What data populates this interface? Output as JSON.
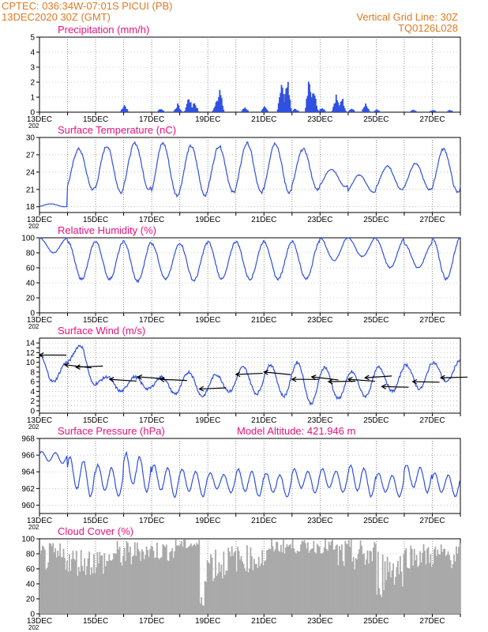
{
  "header": {
    "line1_left": "CPTEC:   036:34W-07:01S   PICUI (PB)",
    "line2_left": "13DEC2020 30Z (GMT)",
    "line1_right": "Vertical Grid Line: 30Z",
    "line2_right": "TQ0126L028"
  },
  "colors": {
    "series": "#3050e0",
    "header": "#e07a20",
    "title": "#e8127a",
    "cloud": "#a9a9a9",
    "arrow": "#000000"
  },
  "x_axis": {
    "labels": [
      "13DEC",
      "15DEC",
      "17DEC",
      "19DEC",
      "21DEC",
      "23DEC",
      "25DEC",
      "27DEC"
    ],
    "year_fragment": "202",
    "range_days": [
      13,
      28
    ]
  },
  "chart_data": [
    {
      "id": "precip",
      "type": "bar",
      "title": "Precipitation (mm/h)",
      "ylim": [
        0,
        5
      ],
      "yticks": [
        0,
        1,
        2,
        3,
        4,
        5
      ],
      "bursts": [
        {
          "day": 16.0,
          "peak": 0.6
        },
        {
          "day": 17.3,
          "peak": 0.3
        },
        {
          "day": 17.9,
          "peak": 0.6
        },
        {
          "day": 18.3,
          "peak": 1.2
        },
        {
          "day": 18.5,
          "peak": 0.8
        },
        {
          "day": 19.3,
          "peak": 1.0
        },
        {
          "day": 19.4,
          "peak": 1.7
        },
        {
          "day": 20.3,
          "peak": 0.4
        },
        {
          "day": 21.0,
          "peak": 0.4
        },
        {
          "day": 21.6,
          "peak": 2.4
        },
        {
          "day": 21.8,
          "peak": 2.6
        },
        {
          "day": 22.1,
          "peak": 0.3
        },
        {
          "day": 22.6,
          "peak": 2.8
        },
        {
          "day": 22.75,
          "peak": 2.0
        },
        {
          "day": 23.05,
          "peak": 0.4
        },
        {
          "day": 23.55,
          "peak": 1.3
        },
        {
          "day": 23.75,
          "peak": 1.2
        },
        {
          "day": 24.1,
          "peak": 0.3
        },
        {
          "day": 24.6,
          "peak": 0.6
        },
        {
          "day": 25.0,
          "peak": 0.2
        },
        {
          "day": 26.3,
          "peak": 0.2
        },
        {
          "day": 27.0,
          "peak": 0.2
        },
        {
          "day": 27.6,
          "peak": 0.2
        }
      ]
    },
    {
      "id": "temp",
      "type": "line",
      "title": "Surface Temperature (nC)",
      "ylim": [
        17,
        30
      ],
      "yticks": [
        18,
        21,
        24,
        27,
        30
      ],
      "daily_max": [
        18.5,
        28.0,
        28.5,
        29.0,
        29.0,
        28.5,
        28.5,
        29.0,
        29.0,
        28.0,
        24.5,
        23.5,
        25.0,
        25.5,
        28.0,
        28.5,
        29.0,
        29.5
      ],
      "daily_min": [
        18.0,
        21.0,
        20.5,
        21.0,
        20.0,
        20.0,
        20.5,
        20.5,
        20.5,
        21.0,
        21.5,
        20.5,
        21.0,
        21.0,
        20.5,
        21.0,
        20.5,
        19.5
      ]
    },
    {
      "id": "rh",
      "type": "line",
      "title": "Relative Humidity (%)",
      "ylim": [
        0,
        100
      ],
      "yticks": [
        0,
        20,
        40,
        60,
        80,
        100
      ],
      "daily_max": [
        100,
        95,
        95,
        95,
        92,
        93,
        95,
        95,
        95,
        95,
        100,
        100,
        98,
        92,
        100,
        95,
        95,
        95
      ],
      "daily_min": [
        80,
        45,
        45,
        42,
        45,
        43,
        45,
        45,
        45,
        45,
        70,
        75,
        60,
        60,
        45,
        40,
        40,
        42
      ]
    },
    {
      "id": "wind",
      "type": "line",
      "title": "Surface Wind (m/s)",
      "ylim": [
        -0.5,
        15
      ],
      "yticks": [
        0,
        1,
        2,
        3,
        4,
        5,
        6,
        7,
        8,
        9,
        10,
        11,
        12,
        13,
        14
      ],
      "ytick_labels": [
        0,
        2,
        4,
        6,
        8,
        10,
        12,
        14
      ],
      "speed": [
        11.5,
        6.0,
        10.0,
        13.5,
        5.5,
        7.0,
        4.0,
        7.0,
        4.5,
        7.0,
        3.5,
        8.0,
        3.0,
        7.5,
        4.0,
        9.0,
        3.5,
        9.5,
        3.0,
        10.0,
        1.5,
        9.0,
        2.5,
        8.0,
        3.0,
        9.0,
        4.0,
        9.5,
        4.5,
        10.0,
        6.0,
        10.5
      ],
      "barbs": [
        {
          "day": 13.0,
          "y": 11.5
        },
        {
          "day": 13.9,
          "y": 9.5
        },
        {
          "day": 14.3,
          "y": 9.0
        },
        {
          "day": 15.5,
          "y": 6.5
        },
        {
          "day": 16.5,
          "y": 7.0
        },
        {
          "day": 17.3,
          "y": 6.5
        },
        {
          "day": 18.7,
          "y": 4.5
        },
        {
          "day": 20.0,
          "y": 7.5
        },
        {
          "day": 21.0,
          "y": 8.0
        },
        {
          "day": 22.0,
          "y": 6.5
        },
        {
          "day": 22.7,
          "y": 7.0
        },
        {
          "day": 23.3,
          "y": 6.0
        },
        {
          "day": 24.0,
          "y": 6.5
        },
        {
          "day": 24.6,
          "y": 6.8
        },
        {
          "day": 25.2,
          "y": 5.0
        },
        {
          "day": 26.3,
          "y": 6.0
        },
        {
          "day": 27.3,
          "y": 6.8
        }
      ]
    },
    {
      "id": "pres",
      "type": "line",
      "title": "Surface Pressure (hPa)",
      "subtitle": "Model Altitude: 421.946 m",
      "ylim": [
        959,
        968
      ],
      "yticks": [
        960,
        962,
        964,
        966,
        968
      ],
      "daily_max": [
        966.5,
        966.0,
        965.0,
        966.5,
        965.0,
        964.5,
        964.0,
        964.5,
        964.0,
        964.5,
        964.5,
        965.0,
        964.0,
        965.0,
        964.0,
        963.5,
        963.0,
        963.5
      ],
      "daily_min": [
        965.0,
        961.0,
        961.0,
        961.5,
        961.0,
        961.0,
        961.5,
        961.0,
        961.0,
        961.5,
        961.5,
        961.0,
        961.0,
        961.5,
        961.0,
        961.0,
        960.5,
        959.0
      ]
    },
    {
      "id": "cloud",
      "type": "bar",
      "title": "Cloud Cover (%)",
      "ylim": [
        0,
        100
      ],
      "yticks": [
        0,
        20,
        40,
        60,
        80,
        100
      ],
      "segments": [
        {
          "from": 13.0,
          "to": 14.0,
          "lo": 55,
          "hi": 95
        },
        {
          "from": 14.0,
          "to": 15.5,
          "lo": 50,
          "hi": 90
        },
        {
          "from": 15.5,
          "to": 16.3,
          "lo": 60,
          "hi": 98
        },
        {
          "from": 16.3,
          "to": 17.8,
          "lo": 70,
          "hi": 98
        },
        {
          "from": 17.8,
          "to": 18.7,
          "lo": 85,
          "hi": 100
        },
        {
          "from": 18.7,
          "to": 18.85,
          "lo": 5,
          "hi": 25
        },
        {
          "from": 18.85,
          "to": 19.6,
          "lo": 40,
          "hi": 95
        },
        {
          "from": 19.6,
          "to": 21.2,
          "lo": 55,
          "hi": 92
        },
        {
          "from": 21.2,
          "to": 23.5,
          "lo": 80,
          "hi": 100
        },
        {
          "from": 23.5,
          "to": 25.0,
          "lo": 55,
          "hi": 100
        },
        {
          "from": 25.0,
          "to": 25.3,
          "lo": 20,
          "hi": 90
        },
        {
          "from": 25.3,
          "to": 26.0,
          "lo": 35,
          "hi": 90
        },
        {
          "from": 26.0,
          "to": 28.0,
          "lo": 60,
          "hi": 95
        }
      ]
    }
  ]
}
